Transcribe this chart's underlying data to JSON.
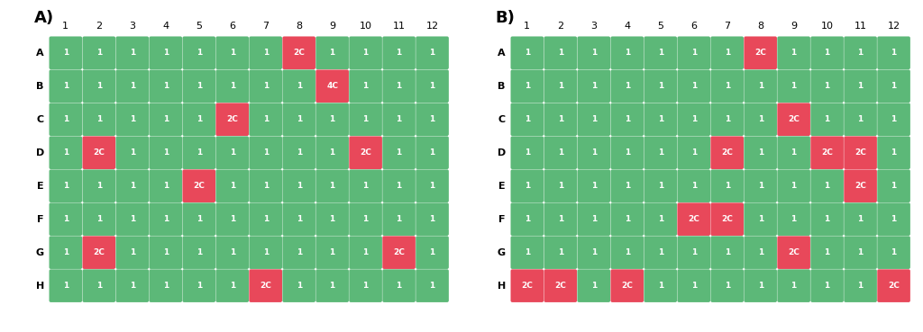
{
  "rows": [
    "A",
    "B",
    "C",
    "D",
    "E",
    "F",
    "G",
    "H"
  ],
  "cols": [
    1,
    2,
    3,
    4,
    5,
    6,
    7,
    8,
    9,
    10,
    11,
    12
  ],
  "plate_A": {
    "A": [
      "1",
      "1",
      "1",
      "1",
      "1",
      "1",
      "1",
      "2C",
      "1",
      "1",
      "1",
      "1"
    ],
    "B": [
      "1",
      "1",
      "1",
      "1",
      "1",
      "1",
      "1",
      "1",
      "4C",
      "1",
      "1",
      "1"
    ],
    "C": [
      "1",
      "1",
      "1",
      "1",
      "1",
      "2C",
      "1",
      "1",
      "1",
      "1",
      "1",
      "1"
    ],
    "D": [
      "1",
      "2C",
      "1",
      "1",
      "1",
      "1",
      "1",
      "1",
      "1",
      "2C",
      "1",
      "1"
    ],
    "E": [
      "1",
      "1",
      "1",
      "1",
      "2C",
      "1",
      "1",
      "1",
      "1",
      "1",
      "1",
      "1"
    ],
    "F": [
      "1",
      "1",
      "1",
      "1",
      "1",
      "1",
      "1",
      "1",
      "1",
      "1",
      "1",
      "1"
    ],
    "G": [
      "1",
      "2C",
      "1",
      "1",
      "1",
      "1",
      "1",
      "1",
      "1",
      "1",
      "2C",
      "1"
    ],
    "H": [
      "1",
      "1",
      "1",
      "1",
      "1",
      "1",
      "2C",
      "1",
      "1",
      "1",
      "1",
      "1"
    ]
  },
  "plate_B": {
    "A": [
      "1",
      "1",
      "1",
      "1",
      "1",
      "1",
      "1",
      "2C",
      "1",
      "1",
      "1",
      "1"
    ],
    "B": [
      "1",
      "1",
      "1",
      "1",
      "1",
      "1",
      "1",
      "1",
      "1",
      "1",
      "1",
      "1"
    ],
    "C": [
      "1",
      "1",
      "1",
      "1",
      "1",
      "1",
      "1",
      "1",
      "2C",
      "1",
      "1",
      "1"
    ],
    "D": [
      "1",
      "1",
      "1",
      "1",
      "1",
      "1",
      "2C",
      "1",
      "1",
      "2C",
      "2C",
      "1"
    ],
    "E": [
      "1",
      "1",
      "1",
      "1",
      "1",
      "1",
      "1",
      "1",
      "1",
      "1",
      "2C",
      "1"
    ],
    "F": [
      "1",
      "1",
      "1",
      "1",
      "1",
      "2C",
      "2C",
      "1",
      "1",
      "1",
      "1",
      "1"
    ],
    "G": [
      "1",
      "1",
      "1",
      "1",
      "1",
      "1",
      "1",
      "1",
      "2C",
      "1",
      "1",
      "1"
    ],
    "H": [
      "2C",
      "2C",
      "1",
      "2C",
      "1",
      "1",
      "1",
      "1",
      "1",
      "1",
      "1",
      "2C"
    ]
  },
  "green_color": "#5cb878",
  "red_color": "#e8485a",
  "text_color": "#ffffff",
  "bg_color": "#ffffff",
  "label_A": "A)",
  "label_B": "B)",
  "cell_text_fontsize": 6.5,
  "label_fontsize": 13,
  "header_fontsize": 8,
  "row_label_fontsize": 8
}
